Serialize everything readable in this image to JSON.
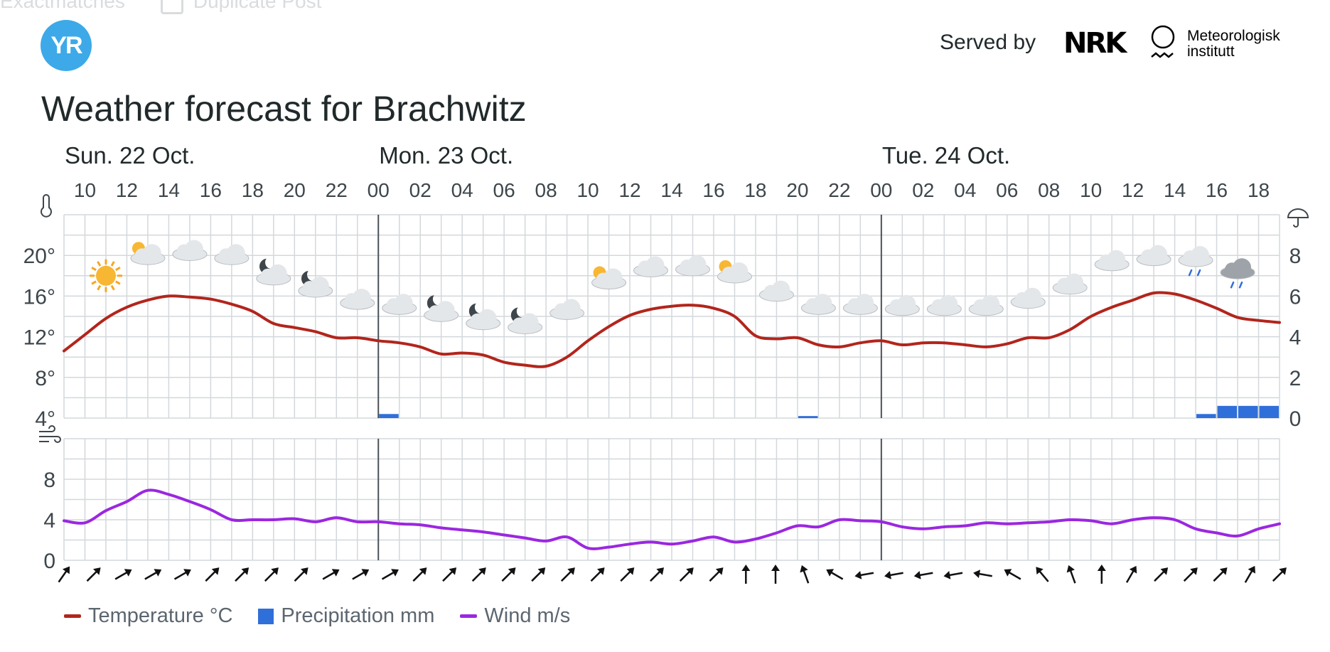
{
  "header": {
    "ghost_text": "Exactmatches",
    "ghost_text2": "Duplicate Post",
    "logo_text": "YR",
    "served_by": "Served by",
    "nrk": "NRK",
    "met_line1": "Meteorologisk",
    "met_line2": "institutt"
  },
  "title": "Weather forecast for Brachwitz",
  "legend": [
    {
      "label": "Temperature °C",
      "color": "#b2251c",
      "shape": "line"
    },
    {
      "label": "Precipitation mm",
      "color": "#2f6fd9",
      "shape": "box"
    },
    {
      "label": "Wind m/s",
      "color": "#9b27e0",
      "shape": "line"
    }
  ],
  "chart_data": {
    "type": "line",
    "days": [
      {
        "label": "Sun. 22 Oct.",
        "hour_index": 0
      },
      {
        "label": "Mon. 23 Oct.",
        "hour_index": 15
      },
      {
        "label": "Tue. 24 Oct.",
        "hour_index": 39
      }
    ],
    "hour_tick_labels": [
      "10",
      "12",
      "14",
      "16",
      "18",
      "20",
      "22",
      "00",
      "02",
      "04",
      "06",
      "08",
      "10",
      "12",
      "14",
      "16",
      "18",
      "20",
      "22",
      "00",
      "02",
      "04",
      "06",
      "08",
      "10",
      "12",
      "14",
      "16",
      "18"
    ],
    "temperature": {
      "name": "Temperature °C",
      "color": "#b2251c",
      "axis_ticks": [
        "4°",
        "8°",
        "12°",
        "16°",
        "20°"
      ],
      "ylim": [
        4,
        24
      ],
      "values": [
        10.6,
        12.2,
        13.8,
        14.9,
        15.6,
        16.0,
        15.9,
        15.7,
        15.2,
        14.5,
        13.3,
        12.9,
        12.5,
        11.9,
        11.9,
        11.6,
        11.4,
        11.0,
        10.3,
        10.4,
        10.2,
        9.5,
        9.2,
        9.1,
        10.0,
        11.6,
        13.0,
        14.1,
        14.7,
        15.0,
        15.1,
        14.8,
        14.0,
        12.1,
        11.8,
        11.9,
        11.2,
        11.0,
        11.4,
        11.6,
        11.2,
        11.4,
        11.4,
        11.2,
        11.0,
        11.3,
        11.9,
        11.9,
        12.7,
        14.0,
        14.9,
        15.6,
        16.3,
        16.2,
        15.6,
        14.8,
        13.9,
        13.6,
        13.4
      ]
    },
    "precipitation": {
      "name": "Precipitation mm",
      "color": "#2f6fd9",
      "axis_ticks": [
        "0",
        "2",
        "4",
        "6",
        "8"
      ],
      "ylim": [
        0,
        10
      ],
      "bars": [
        {
          "hour_index": 15,
          "value": 0.2
        },
        {
          "hour_index": 35,
          "value": 0.1
        },
        {
          "hour_index": 54,
          "value": 0.2
        },
        {
          "hour_index": 55,
          "value": 0.6
        },
        {
          "hour_index": 56,
          "value": 0.6
        },
        {
          "hour_index": 57,
          "value": 0.6
        }
      ]
    },
    "wind": {
      "name": "Wind m/s",
      "color": "#9b27e0",
      "axis_ticks": [
        "0",
        "4",
        "8"
      ],
      "ylim": [
        0,
        12
      ],
      "values": [
        3.9,
        3.7,
        4.9,
        5.8,
        6.9,
        6.5,
        5.8,
        5.0,
        4.0,
        4.0,
        4.0,
        4.1,
        3.8,
        4.2,
        3.8,
        3.8,
        3.6,
        3.5,
        3.2,
        3.0,
        2.8,
        2.5,
        2.2,
        1.9,
        2.3,
        1.2,
        1.3,
        1.6,
        1.8,
        1.6,
        1.9,
        2.3,
        1.8,
        2.1,
        2.7,
        3.4,
        3.3,
        4.0,
        3.9,
        3.8,
        3.3,
        3.1,
        3.3,
        3.4,
        3.7,
        3.6,
        3.7,
        3.8,
        4.0,
        3.9,
        3.6,
        4.0,
        4.2,
        4.0,
        3.1,
        2.7,
        2.4,
        3.1,
        3.6
      ],
      "direction_arrows": [
        35,
        45,
        60,
        60,
        60,
        45,
        45,
        45,
        45,
        60,
        60,
        60,
        45,
        45,
        45,
        45,
        45,
        45,
        45,
        45,
        45,
        45,
        45,
        0,
        0,
        -20,
        -60,
        -100,
        -100,
        -100,
        -100,
        -80,
        -60,
        -40,
        -20,
        0,
        30,
        45,
        45,
        45,
        30,
        45
      ]
    },
    "weather_symbols": [
      {
        "hour_index": 2,
        "icon": "clear-sun-icon",
        "temp_pos": 18
      },
      {
        "hour_index": 4,
        "icon": "fair-sun-cloud-icon",
        "temp_pos": 20
      },
      {
        "hour_index": 6,
        "icon": "cloudy-icon",
        "temp_pos": 20.4
      },
      {
        "hour_index": 8,
        "icon": "cloudy-icon",
        "temp_pos": 20
      },
      {
        "hour_index": 10,
        "icon": "partly-cloudy-night-icon",
        "temp_pos": 18
      },
      {
        "hour_index": 12,
        "icon": "partly-cloudy-night-icon",
        "temp_pos": 16.8
      },
      {
        "hour_index": 14,
        "icon": "cloudy-icon",
        "temp_pos": 15.6
      },
      {
        "hour_index": 16,
        "icon": "cloudy-icon",
        "temp_pos": 15.1
      },
      {
        "hour_index": 18,
        "icon": "partly-cloudy-night-icon",
        "temp_pos": 14.4
      },
      {
        "hour_index": 20,
        "icon": "partly-cloudy-night-icon",
        "temp_pos": 13.6
      },
      {
        "hour_index": 22,
        "icon": "partly-cloudy-night-icon",
        "temp_pos": 13.2
      },
      {
        "hour_index": 24,
        "icon": "cloudy-icon",
        "temp_pos": 14.6
      },
      {
        "hour_index": 26,
        "icon": "fair-sun-cloud-icon",
        "temp_pos": 17.6
      },
      {
        "hour_index": 28,
        "icon": "cloudy-icon",
        "temp_pos": 18.8
      },
      {
        "hour_index": 30,
        "icon": "cloudy-icon",
        "temp_pos": 18.9
      },
      {
        "hour_index": 32,
        "icon": "fair-sun-cloud-icon",
        "temp_pos": 18.2
      },
      {
        "hour_index": 34,
        "icon": "cloudy-icon",
        "temp_pos": 16.4
      },
      {
        "hour_index": 36,
        "icon": "cloudy-icon",
        "temp_pos": 15.1
      },
      {
        "hour_index": 38,
        "icon": "cloudy-icon",
        "temp_pos": 15.1
      },
      {
        "hour_index": 40,
        "icon": "cloudy-icon",
        "temp_pos": 15.0
      },
      {
        "hour_index": 42,
        "icon": "cloudy-icon",
        "temp_pos": 15.0
      },
      {
        "hour_index": 44,
        "icon": "cloudy-icon",
        "temp_pos": 15.0
      },
      {
        "hour_index": 46,
        "icon": "cloudy-icon",
        "temp_pos": 15.7
      },
      {
        "hour_index": 48,
        "icon": "cloudy-icon",
        "temp_pos": 17.1
      },
      {
        "hour_index": 50,
        "icon": "cloudy-icon",
        "temp_pos": 19.4
      },
      {
        "hour_index": 52,
        "icon": "cloudy-icon",
        "temp_pos": 19.9
      },
      {
        "hour_index": 54,
        "icon": "light-rain-icon",
        "temp_pos": 19.8
      },
      {
        "hour_index": 56,
        "icon": "rain-dark-cloud-icon",
        "temp_pos": 18.6
      }
    ]
  }
}
